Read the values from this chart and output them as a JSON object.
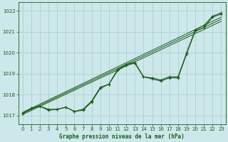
{
  "title": "Graphe pression niveau de la mer (hPa)",
  "bg_color": "#cce8ea",
  "grid_color": "#b0d0d4",
  "line_color": "#1a5c1a",
  "xlim": [
    -0.5,
    23.5
  ],
  "ylim": [
    1016.6,
    1022.4
  ],
  "yticks": [
    1017,
    1018,
    1019,
    1020,
    1021,
    1022
  ],
  "xticks": [
    0,
    1,
    2,
    3,
    4,
    5,
    6,
    7,
    8,
    9,
    10,
    11,
    12,
    13,
    14,
    15,
    16,
    17,
    18,
    19,
    20,
    21,
    22,
    23
  ],
  "series1_x": [
    0,
    1,
    2,
    3,
    4,
    5,
    6,
    7,
    8,
    9,
    10,
    11,
    12,
    13,
    14,
    15,
    16,
    17,
    18,
    19,
    20,
    21,
    22,
    23
  ],
  "series1_y": [
    1017.1,
    1017.35,
    1017.45,
    1017.25,
    1017.3,
    1017.4,
    1017.2,
    1017.25,
    1017.65,
    1018.3,
    1018.5,
    1019.15,
    1019.4,
    1019.5,
    1018.85,
    1018.75,
    1018.65,
    1018.8,
    1018.8,
    1019.95,
    1021.05,
    1021.2,
    1021.7,
    1021.85
  ],
  "series2_x": [
    0,
    1,
    2,
    3,
    4,
    5,
    6,
    7,
    8,
    9,
    10,
    11,
    12,
    13,
    14,
    15,
    16,
    17,
    18,
    19,
    20,
    21,
    22,
    23
  ],
  "series2_y": [
    1017.1,
    1017.35,
    1017.45,
    1017.3,
    1017.3,
    1017.4,
    1017.2,
    1017.3,
    1017.7,
    1018.35,
    1018.5,
    1019.2,
    1019.45,
    1019.55,
    1018.85,
    1018.8,
    1018.7,
    1018.85,
    1018.85,
    1020.0,
    1021.1,
    1021.3,
    1021.75,
    1021.9
  ],
  "trend_lines": [
    {
      "x": [
        0,
        23
      ],
      "y": [
        1017.05,
        1021.5
      ]
    },
    {
      "x": [
        0,
        23
      ],
      "y": [
        1017.1,
        1021.6
      ]
    },
    {
      "x": [
        0,
        23
      ],
      "y": [
        1017.15,
        1021.7
      ]
    }
  ]
}
